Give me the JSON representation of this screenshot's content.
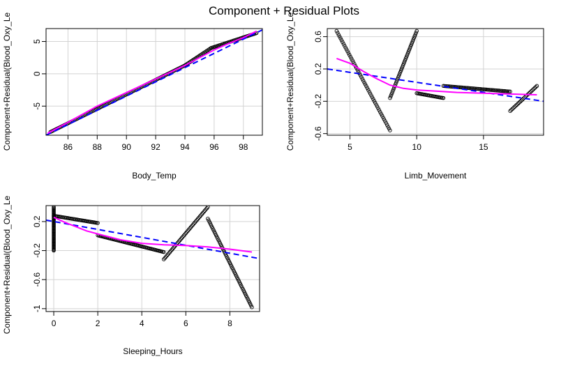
{
  "title": "Component + Residual Plots",
  "colors": {
    "points": "#000000",
    "linear_fit": "#0000ff",
    "smooth": "#ff00ff",
    "grid": "#d3d3d3"
  },
  "chart_data": [
    {
      "type": "scatter",
      "xlabel": "Body_Temp",
      "ylabel": "Component+Residual(Blood_Oxy_Le",
      "xlim": [
        84.5,
        99.3
      ],
      "ylim": [
        -9.5,
        7.0
      ],
      "xticks": [
        86,
        88,
        90,
        92,
        94,
        96,
        98
      ],
      "yticks": [
        -5,
        0,
        5
      ],
      "grid": true,
      "points_segments": [
        {
          "x": [
            84.8,
            94.0
          ],
          "y": [
            -9.0,
            1.3
          ],
          "n": 110
        },
        {
          "x": [
            94.0,
            95.8
          ],
          "y": [
            1.3,
            4.0
          ],
          "n": 25
        },
        {
          "x": [
            95.8,
            98.9
          ],
          "y": [
            4.0,
            6.3
          ],
          "n": 40
        }
      ],
      "linear_fit": {
        "x": [
          84.5,
          99.3
        ],
        "y": [
          -9.5,
          6.8
        ]
      },
      "smooth": {
        "x": [
          84.6,
          86,
          88,
          90,
          92,
          94,
          95,
          96,
          97,
          98,
          98.9
        ],
        "y": [
          -9.2,
          -7.5,
          -5.0,
          -2.9,
          -0.8,
          1.3,
          2.5,
          3.7,
          4.7,
          5.6,
          6.6
        ]
      }
    },
    {
      "type": "scatter",
      "xlabel": "Limb_Movement",
      "ylabel": "Component+Residual(Blood_Oxy_Le",
      "xlim": [
        3.3,
        19.5
      ],
      "ylim": [
        -0.62,
        0.7
      ],
      "xticks": [
        5,
        10,
        15
      ],
      "yticks": [
        -0.6,
        -0.2,
        0.2,
        0.6
      ],
      "grid": true,
      "points_segments": [
        {
          "x": [
            4.0,
            8.0
          ],
          "y": [
            0.67,
            -0.56
          ],
          "n": 55
        },
        {
          "x": [
            8.0,
            10.0
          ],
          "y": [
            -0.16,
            0.67
          ],
          "n": 40
        },
        {
          "x": [
            10.0,
            12.0
          ],
          "y": [
            -0.1,
            -0.16
          ],
          "n": 25
        },
        {
          "x": [
            12.0,
            17.0
          ],
          "y": [
            -0.01,
            -0.08
          ],
          "n": 55
        },
        {
          "x": [
            17.0,
            19.0
          ],
          "y": [
            -0.32,
            -0.01
          ],
          "n": 25
        }
      ],
      "linear_fit": {
        "x": [
          3.3,
          19.5
        ],
        "y": [
          0.2,
          -0.2
        ]
      },
      "smooth": {
        "x": [
          4.0,
          5.0,
          6.0,
          7.0,
          8.0,
          9.0,
          10.0,
          11.0,
          12.0,
          13.0,
          15.0,
          17.0,
          19.0
        ],
        "y": [
          0.33,
          0.27,
          0.17,
          0.08,
          0.0,
          -0.04,
          -0.06,
          -0.07,
          -0.08,
          -0.09,
          -0.1,
          -0.11,
          -0.12
        ]
      }
    },
    {
      "type": "scatter",
      "xlabel": "Sleeping_Hours",
      "ylabel": "Component+Residual(Blood_Oxy_Le",
      "xlim": [
        -0.35,
        9.35
      ],
      "ylim": [
        -1.04,
        0.42
      ],
      "xticks": [
        0,
        2,
        4,
        6,
        8
      ],
      "yticks": [
        -1.0,
        -0.6,
        -0.2,
        0.2
      ],
      "grid": true,
      "points_vertical": {
        "x": 0,
        "y": [
          -0.2,
          0.4
        ],
        "n": 50
      },
      "points_segments": [
        {
          "x": [
            0.0,
            2.0
          ],
          "y": [
            0.28,
            0.18
          ],
          "n": 40
        },
        {
          "x": [
            2.0,
            5.0
          ],
          "y": [
            0.01,
            -0.22
          ],
          "n": 60
        },
        {
          "x": [
            5.0,
            7.0
          ],
          "y": [
            -0.32,
            0.4
          ],
          "n": 45
        },
        {
          "x": [
            7.0,
            9.0
          ],
          "y": [
            0.24,
            -0.98
          ],
          "n": 55
        }
      ],
      "linear_fit": {
        "x": [
          -0.35,
          9.35
        ],
        "y": [
          0.22,
          -0.31
        ]
      },
      "smooth": {
        "x": [
          0.0,
          0.5,
          1.0,
          1.5,
          2.0,
          3.0,
          4.0,
          5.0,
          6.0,
          7.0,
          8.0,
          9.0
        ],
        "y": [
          0.26,
          0.19,
          0.13,
          0.07,
          0.03,
          -0.05,
          -0.1,
          -0.12,
          -0.13,
          -0.15,
          -0.18,
          -0.22
        ]
      }
    }
  ]
}
